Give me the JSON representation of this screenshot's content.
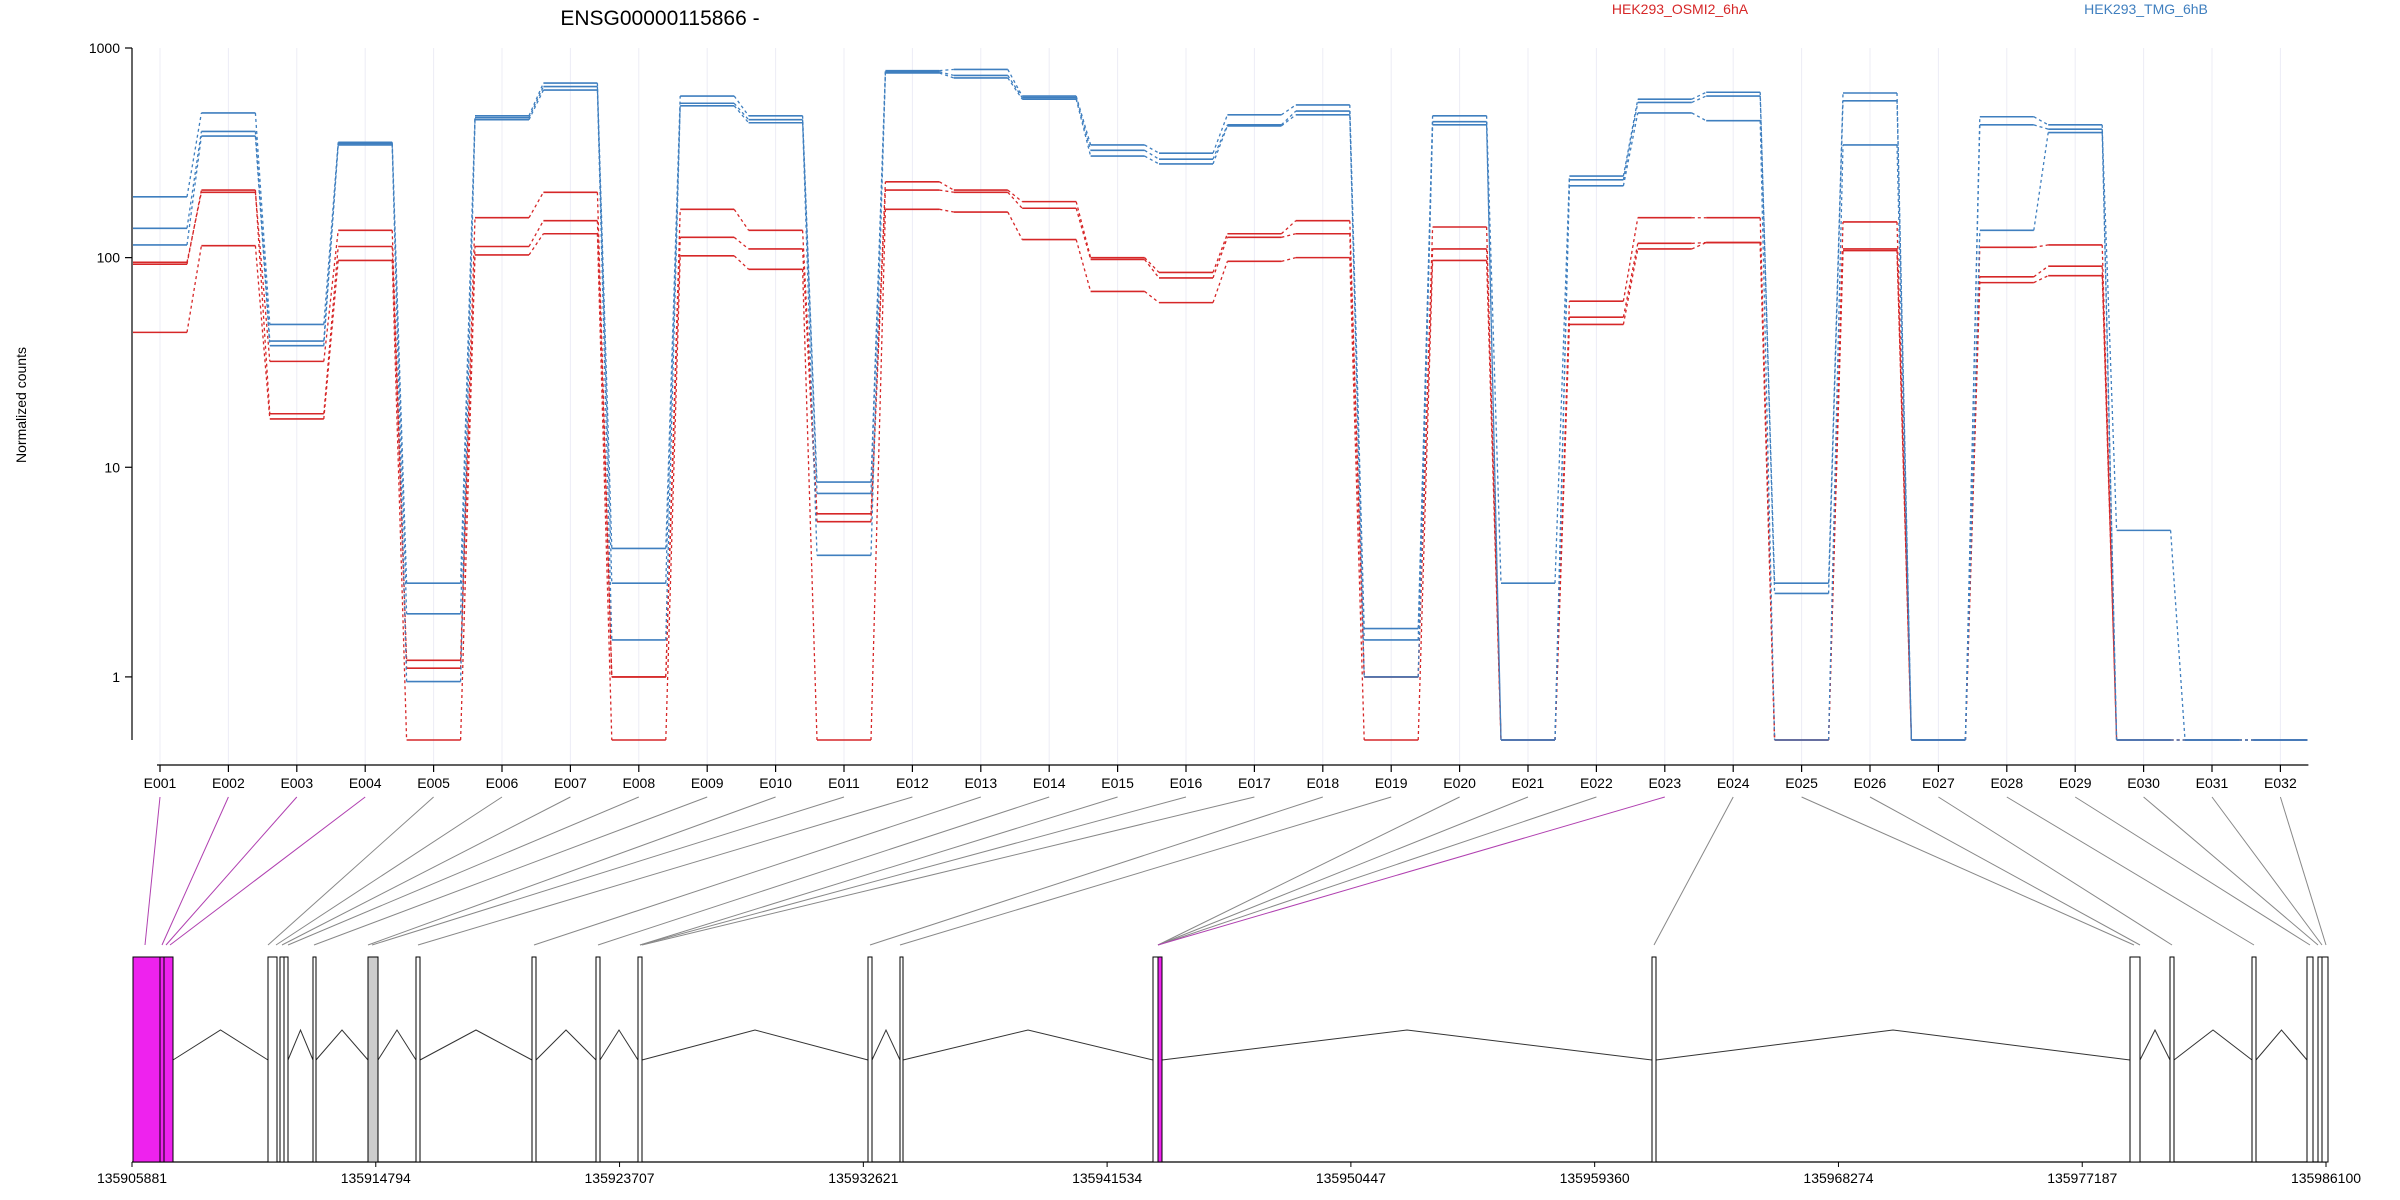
{
  "chart_data": {
    "type": "line",
    "title": "ENSG00000115866 -",
    "ylabel": "Normalized counts",
    "yscale": "log",
    "ylim": [
      0.5,
      1000
    ],
    "yticks": [
      "1",
      "10",
      "100",
      "1000"
    ],
    "yticks_values": [
      1,
      10,
      100,
      1000
    ],
    "grid": "vertical",
    "legend": [
      {
        "name": "HEK293_OSMI2_6hA",
        "color": "#d62728"
      },
      {
        "name": "HEK293_TMG_6hB",
        "color": "#3f7fbf"
      }
    ],
    "categories": [
      "E001",
      "E002",
      "E003",
      "E004",
      "E005",
      "E006",
      "E007",
      "E008",
      "E009",
      "E010",
      "E011",
      "E012",
      "E013",
      "E014",
      "E015",
      "E016",
      "E017",
      "E018",
      "E019",
      "E020",
      "E021",
      "E022",
      "E023",
      "E024",
      "E025",
      "E026",
      "E027",
      "E028",
      "E029",
      "E030",
      "E031",
      "E032"
    ],
    "series": [
      {
        "group": "HEK293_OSMI2_6hA",
        "color": "#d62728",
        "values": [
          95,
          205,
          32,
          135,
          1.2,
          155,
          205,
          1.0,
          170,
          135,
          6,
          230,
          210,
          185,
          100,
          85,
          130,
          150,
          1.0,
          140,
          0.5,
          62,
          155,
          155,
          0.5,
          148,
          0.5,
          112,
          115,
          0.5,
          0.5,
          0.5
        ]
      },
      {
        "group": "HEK293_OSMI2_6hA",
        "color": "#d62728",
        "values": [
          93,
          210,
          18,
          113,
          1.1,
          113,
          150,
          1.0,
          125,
          110,
          5.5,
          210,
          205,
          172,
          98,
          80,
          125,
          130,
          1.0,
          110,
          0.5,
          52,
          117,
          118,
          0.5,
          110,
          0.5,
          81,
          91,
          0.5,
          0.5,
          0.5
        ]
      },
      {
        "group": "HEK293_OSMI2_6hA",
        "color": "#d62728",
        "values": [
          44,
          114,
          17,
          97,
          0.5,
          103,
          130,
          0.5,
          102,
          88,
          0.5,
          170,
          165,
          122,
          69,
          61,
          96,
          100,
          0.5,
          97,
          0.5,
          48,
          110,
          118,
          0.5,
          108,
          0.5,
          76,
          82,
          0.5,
          0.5,
          0.5
        ]
      },
      {
        "group": "HEK293_TMG_6hB",
        "color": "#3f7fbf",
        "values": [
          195,
          490,
          48,
          355,
          2.8,
          475,
          680,
          4.1,
          590,
          475,
          8.5,
          780,
          790,
          590,
          345,
          315,
          480,
          535,
          1.7,
          475,
          2.8,
          245,
          570,
          615,
          2.8,
          610,
          0.5,
          470,
          430,
          0.5,
          0.5,
          0.5
        ]
      },
      {
        "group": "HEK293_TMG_6hB",
        "color": "#3f7fbf",
        "values": [
          138,
          400,
          40,
          350,
          2.0,
          465,
          655,
          2.8,
          545,
          455,
          7.5,
          770,
          740,
          580,
          325,
          295,
          430,
          500,
          1.5,
          445,
          0.5,
          235,
          550,
          590,
          2.5,
          560,
          0.5,
          430,
          410,
          5.0,
          0.5,
          0.5
        ]
      },
      {
        "group": "HEK293_TMG_6hB",
        "color": "#3f7fbf",
        "values": [
          115,
          380,
          38,
          345,
          0.95,
          455,
          630,
          1.5,
          530,
          440,
          3.8,
          760,
          720,
          570,
          305,
          280,
          425,
          480,
          1.0,
          430,
          0.5,
          220,
          490,
          450,
          0.5,
          345,
          0.5,
          135,
          395,
          0.5,
          0.5,
          0.5
        ]
      }
    ],
    "exon_track": {
      "positions": [
        "135905881",
        "135914794",
        "135923707",
        "135932621",
        "135941534",
        "135950447",
        "135959360",
        "135968274",
        "135977187",
        "135986100"
      ],
      "range": [
        135905881,
        135986100
      ]
    }
  }
}
